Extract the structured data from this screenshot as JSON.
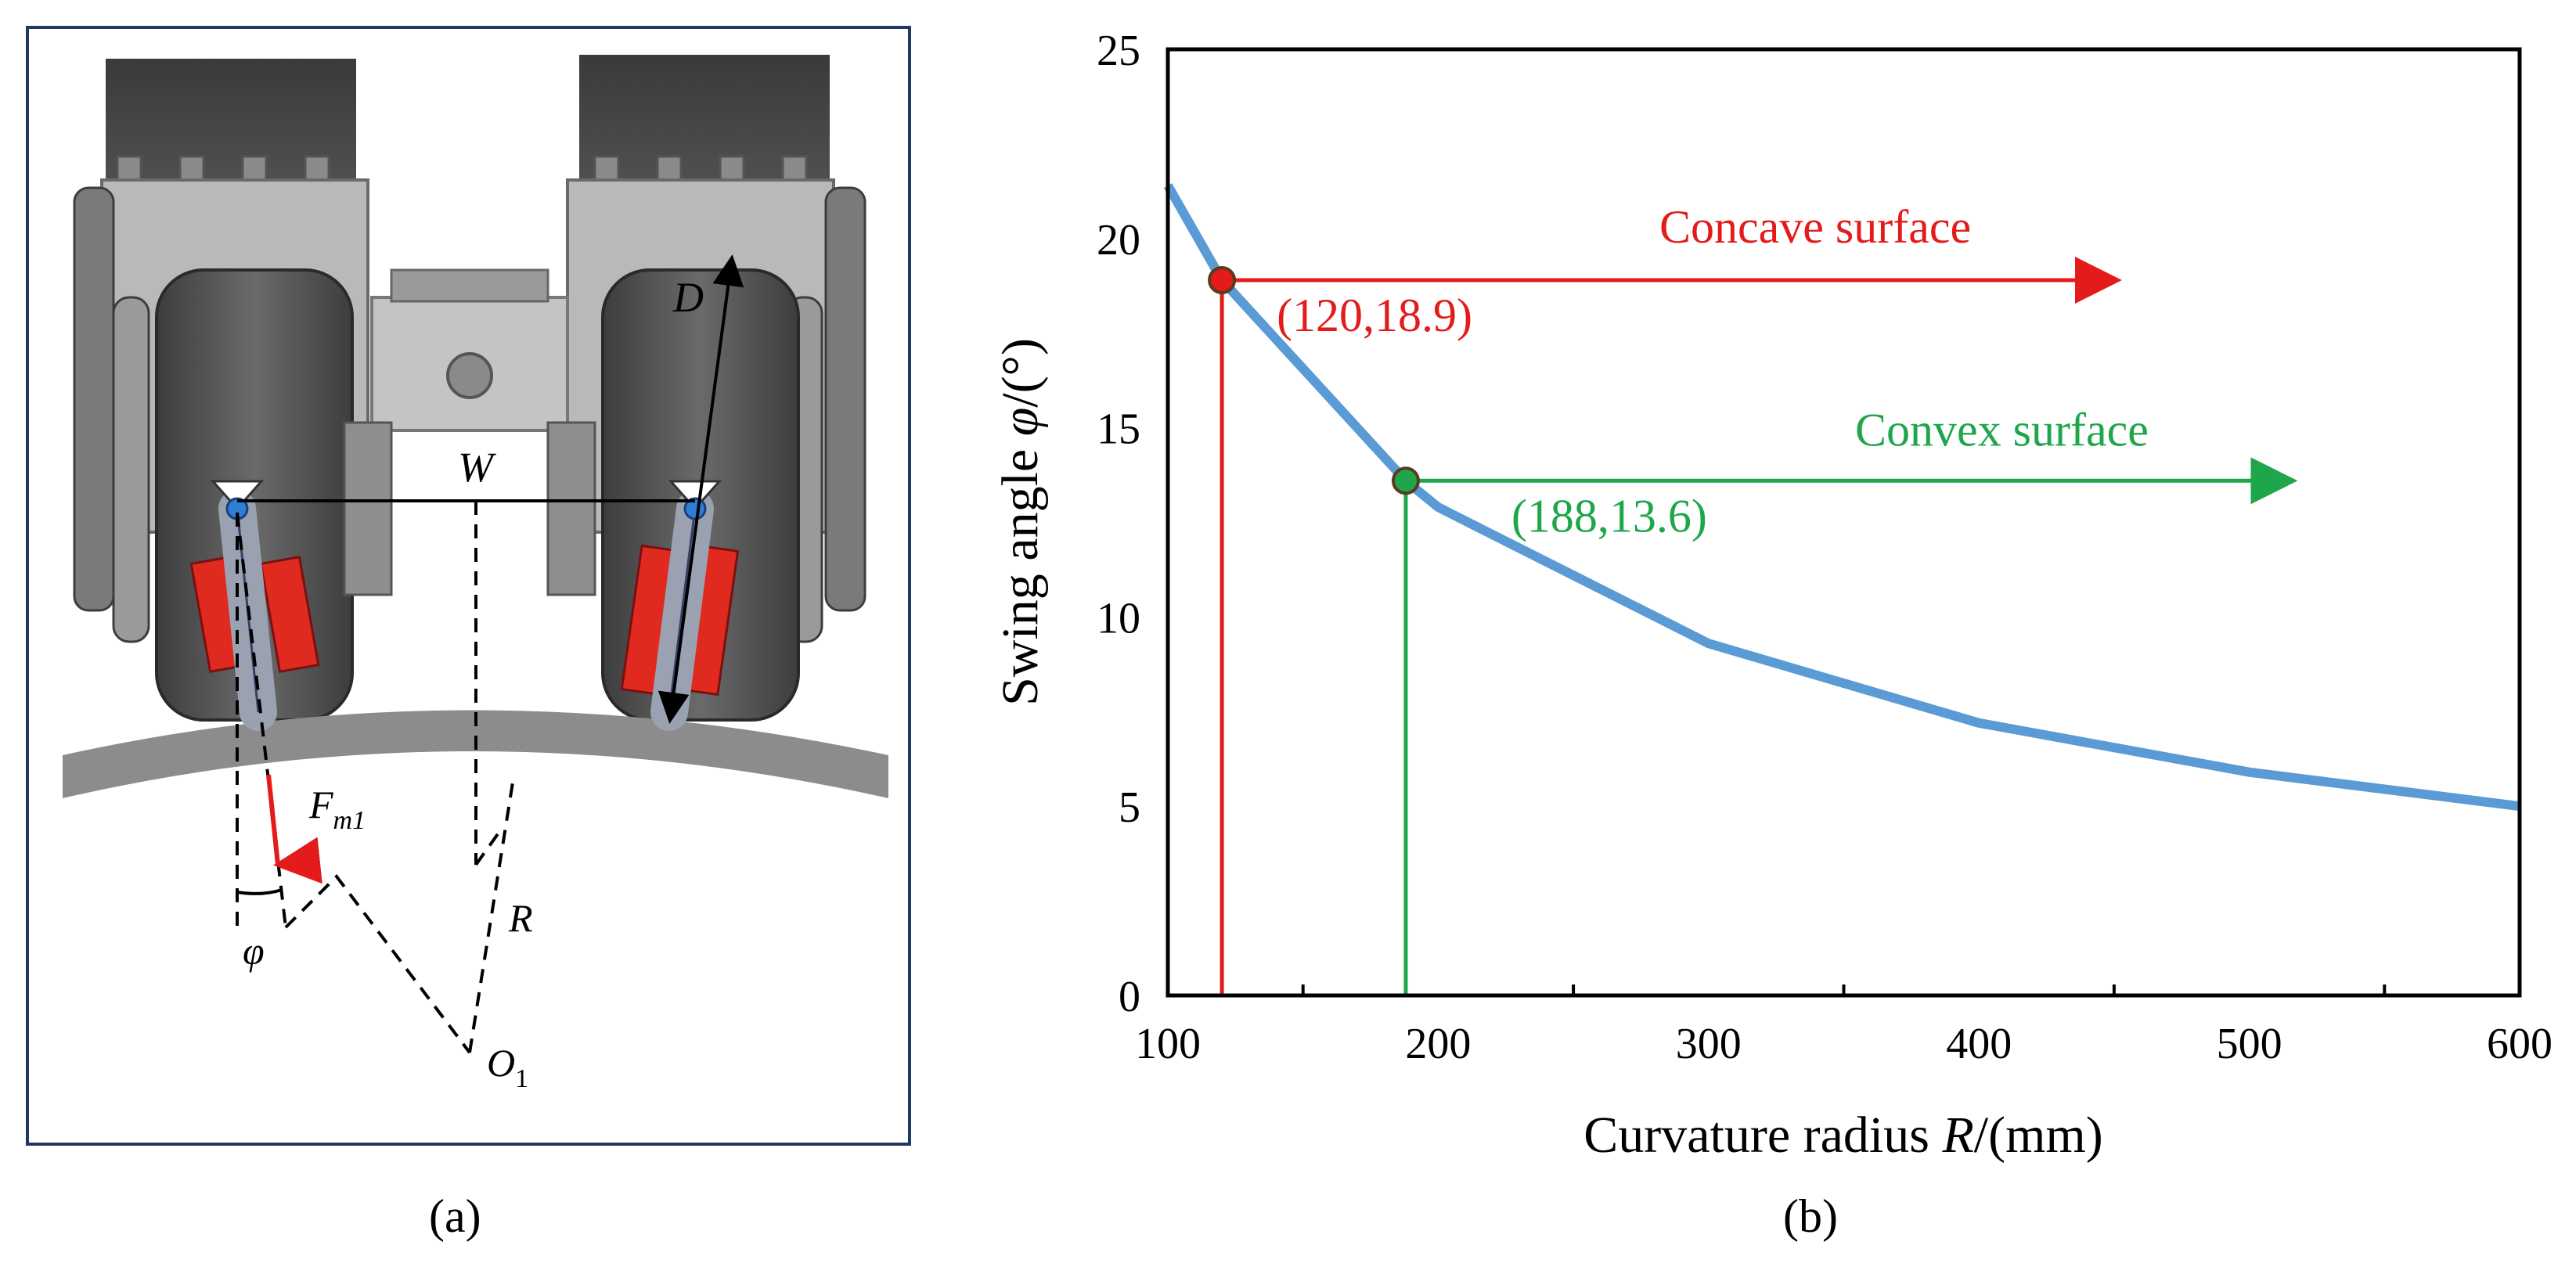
{
  "panel_a": {
    "caption": "(a)",
    "labels": {
      "D": "D",
      "W": "W",
      "F": "F",
      "F_sub": "m1",
      "phi": "φ",
      "R": "R",
      "O": "O",
      "O_sub": "1"
    }
  },
  "panel_b": {
    "caption": "(b)"
  },
  "colors": {
    "curve": "#5b9bd5",
    "concave": "#e31b1b",
    "convex": "#1fa64a",
    "frame": "#1f3864"
  },
  "chart_data": {
    "type": "line",
    "xlabel_prefix": "Curvature radius ",
    "xlabel_var": "R",
    "xlabel_suffix": "/(mm)",
    "ylabel_prefix": "Swing angle ",
    "ylabel_var": "φ",
    "ylabel_suffix": "/(°)",
    "xlim": [
      100,
      600
    ],
    "ylim": [
      0,
      25
    ],
    "x_ticks": [
      "100",
      "200",
      "300",
      "400",
      "500",
      "600"
    ],
    "y_ticks": [
      "0",
      "5",
      "10",
      "15",
      "20",
      "25"
    ],
    "x": [
      100,
      120,
      188,
      200,
      300,
      400,
      500,
      600
    ],
    "y": [
      21.4,
      18.9,
      13.6,
      12.9,
      9.3,
      7.2,
      5.9,
      5.0
    ],
    "points": [
      {
        "x": 120,
        "y": 18.9,
        "label": "(120,18.9)",
        "annotation": "Concave surface",
        "color": "#e31b1b",
        "arrow_to_x": 450
      },
      {
        "x": 188,
        "y": 13.6,
        "label": "(188,13.6)",
        "annotation": "Convex surface",
        "color": "#1fa64a",
        "arrow_to_x": 515
      }
    ]
  }
}
